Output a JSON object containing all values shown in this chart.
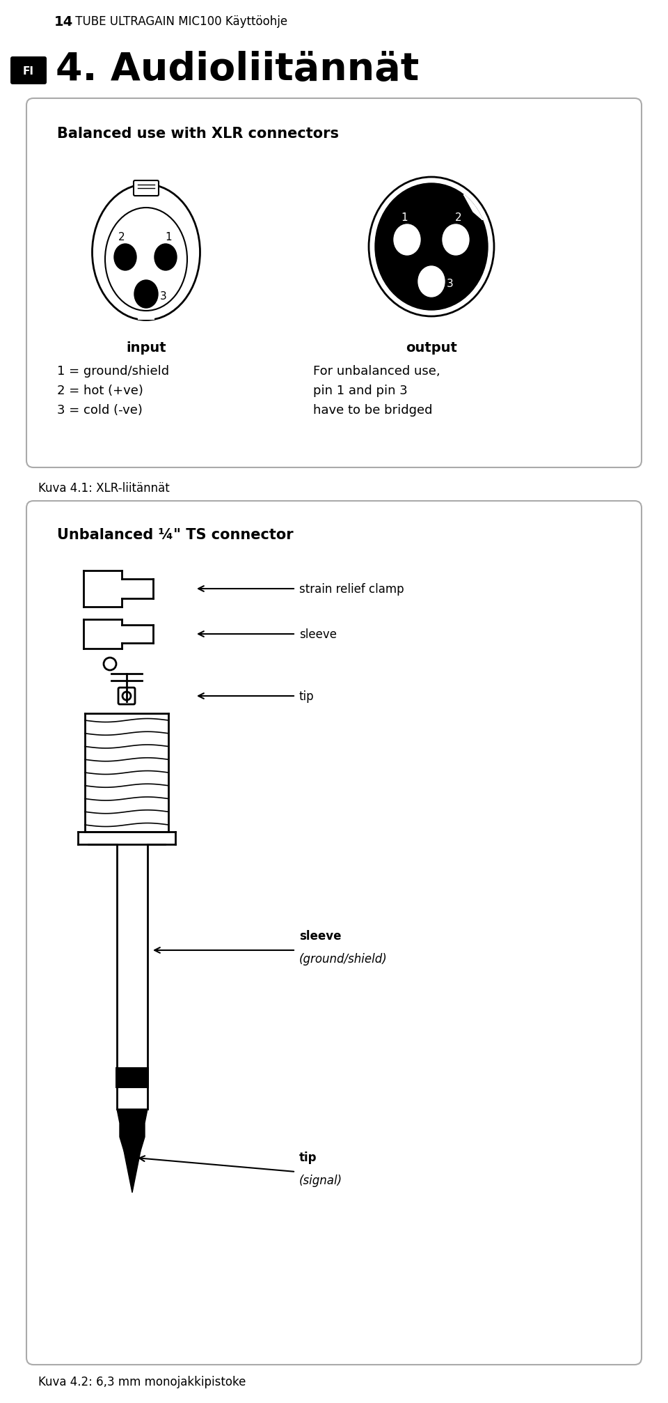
{
  "page_width": 9.6,
  "page_height": 20.15,
  "bg_color": "#ffffff",
  "header_num": "14",
  "header_text": " TUBE ULTRAGAIN MIC100 Käyttöohje",
  "fi_label": "FI",
  "section_title": "4. Audioliitännät",
  "box1_title": "Balanced use with XLR connectors",
  "input_label": "input",
  "output_label": "output",
  "input_lines": [
    "1 = ground/shield",
    "2 = hot (+ve)",
    "3 = cold (-ve)"
  ],
  "output_text": "For unbalanced use,\npin 1 and pin 3\nhave to be bridged",
  "caption1": "Kuva 4.1: XLR-liitännät",
  "box2_title": "Unbalanced ¼\" TS connector",
  "label_src": [
    "strain relief clamp",
    "sleeve",
    "tip",
    "sleeve",
    "(ground/shield)",
    "tip",
    "(signal)"
  ],
  "caption2": "Kuva 4.2: 6,3 mm monojakkipistoke"
}
